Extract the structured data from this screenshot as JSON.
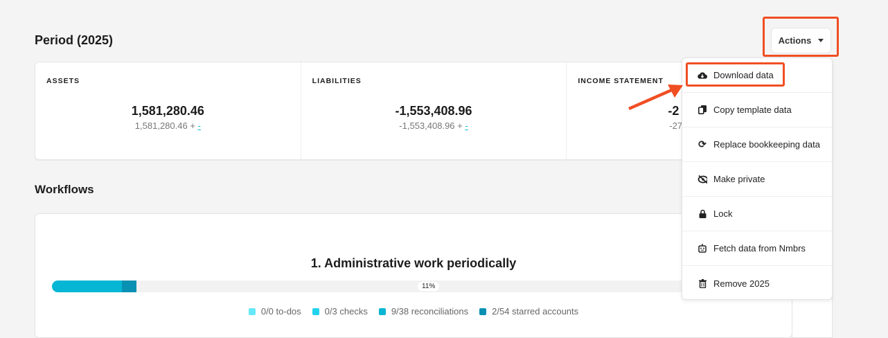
{
  "period_title": "Period (2025)",
  "actions_label": "Actions",
  "summary": [
    {
      "label": "ASSETS",
      "value": "1,581,280.46",
      "sub": "1,581,280.46 +",
      "link": "-"
    },
    {
      "label": "LIABILITIES",
      "value": "-1,553,408.96",
      "sub": "-1,553,408.96 +",
      "link": "-"
    },
    {
      "label": "INCOME STATEMENT",
      "value": "-2",
      "sub": "-27",
      "link": ""
    }
  ],
  "workflows_title": "Workflows",
  "workflow": {
    "title": "1. Administrative work periodically",
    "progress_label": "11%",
    "progress": {
      "reconciliations_pct": 9.4,
      "starred_pct": 2.0
    },
    "legend": [
      {
        "label": "0/0 to-dos",
        "color": "#67e8f9"
      },
      {
        "label": "0/3 checks",
        "color": "#22d3ee"
      },
      {
        "label": "9/38 reconciliations",
        "color": "#06b6d4"
      },
      {
        "label": "2/54 starred accounts",
        "color": "#0891b2"
      }
    ]
  },
  "menu": [
    {
      "label": "Download data",
      "icon": "cloud-download-icon"
    },
    {
      "label": "Copy template data",
      "icon": "copy-icon"
    },
    {
      "label": "Replace bookkeeping data",
      "icon": "refresh-icon"
    },
    {
      "label": "Make private",
      "icon": "eye-slash-icon"
    },
    {
      "label": "Lock",
      "icon": "lock-icon"
    },
    {
      "label": "Fetch data from Nmbrs",
      "icon": "robot-icon"
    },
    {
      "label": "Remove 2025",
      "icon": "trash-icon"
    }
  ],
  "highlight_color": "#f04e23"
}
